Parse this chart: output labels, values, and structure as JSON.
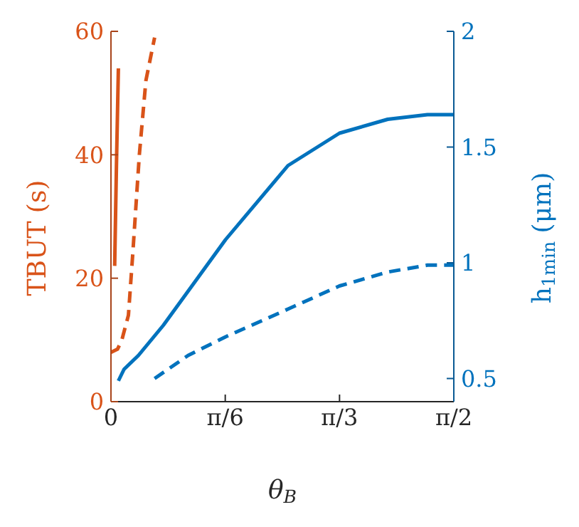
{
  "chart_data": {
    "type": "line",
    "xlabel": "θ$_{B}$",
    "ylabel": "TBUT (s)",
    "y2label": "h$_{1min}$ (μm)",
    "xlim": [
      0,
      1.5708
    ],
    "xticks": [
      0,
      {
        "value": 0.5236,
        "label": "π/6"
      },
      {
        "value": 1.0472,
        "label": "π/3"
      },
      {
        "value": 1.5708,
        "label": "π/2"
      }
    ],
    "ylim": [
      0,
      60
    ],
    "yticks": [
      0,
      20,
      40,
      60
    ],
    "y2lim": [
      0.4,
      2
    ],
    "y2ticks": [
      0.5,
      1,
      1.5,
      2
    ],
    "grid": false,
    "legend": false,
    "marker": "none",
    "series": [
      {
        "color": "#d95319",
        "line_style": "solid",
        "x": [
          0.017,
          0.025,
          0.034
        ],
        "values": [
          22,
          38,
          54
        ]
      },
      {
        "color": "#d95319",
        "line_style": "dashed",
        "x": [
          0,
          0.03,
          0.05,
          0.08,
          0.1,
          0.13,
          0.16,
          0.2
        ],
        "values": [
          8,
          8.5,
          10,
          14,
          24,
          40,
          52,
          59
        ]
      },
      {
        "color": "#0072bd",
        "line_style": "solid",
        "axis": "y2",
        "x": [
          0.034,
          0.06,
          0.126,
          0.24,
          0.525,
          0.811,
          1.047,
          1.268,
          1.45,
          1.5708
        ],
        "values": [
          0.49,
          0.54,
          0.6,
          0.73,
          1.1,
          1.42,
          1.56,
          1.62,
          1.64,
          1.64
        ]
      },
      {
        "color": "#0072bd",
        "line_style": "dashed",
        "axis": "y2",
        "x": [
          0.2,
          0.354,
          0.525,
          0.811,
          1.047,
          1.268,
          1.45,
          1.5708
        ],
        "values": [
          0.5,
          0.6,
          0.68,
          0.8,
          0.9,
          0.96,
          0.99,
          0.99
        ]
      }
    ]
  }
}
